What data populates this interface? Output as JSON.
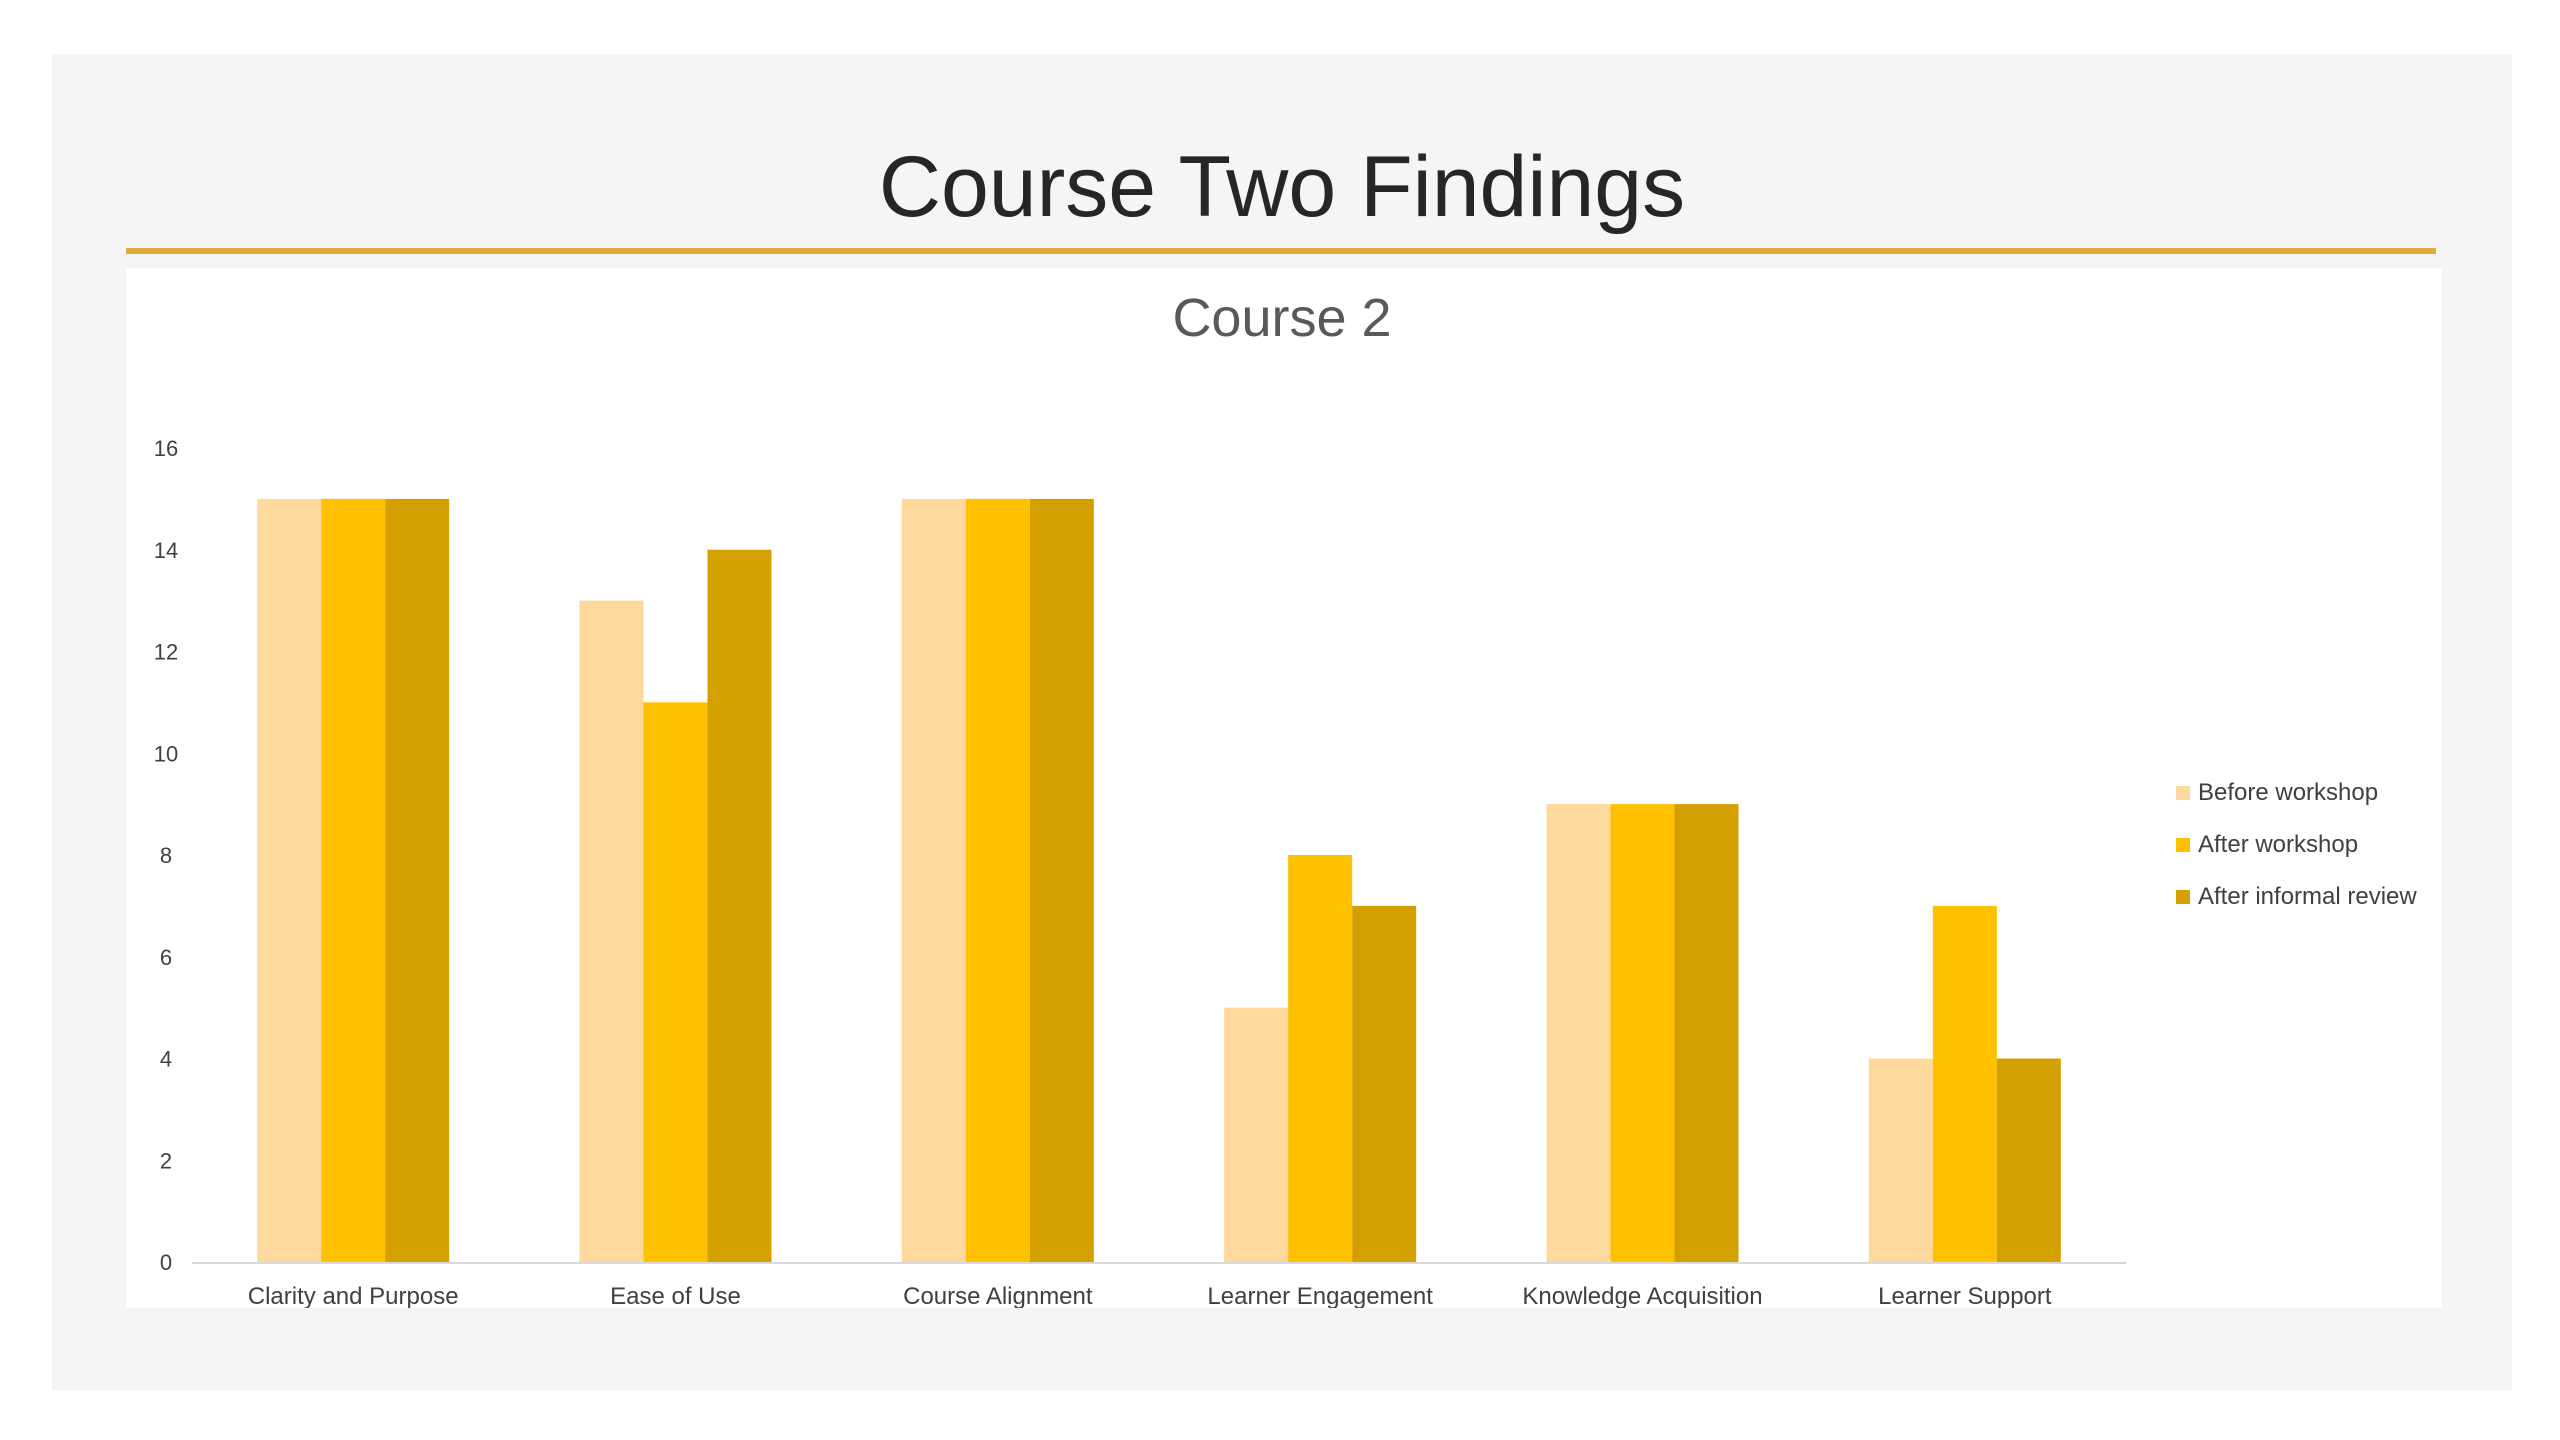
{
  "slide": {
    "title": "Course Two Findings",
    "rule_color": "#e3ab3a"
  },
  "chart_data": {
    "type": "bar",
    "title": "Course 2",
    "xlabel": "",
    "ylabel": "",
    "ylim": [
      0,
      16
    ],
    "yticks": [
      0,
      2,
      4,
      6,
      8,
      10,
      12,
      14,
      16
    ],
    "grid": false,
    "legend_position": "right",
    "categories": [
      "Clarity and Purpose",
      "Ease of Use",
      "Course Alignment",
      "Learner Engagement",
      "Knowledge Acquisition",
      "Learner Support"
    ],
    "series": [
      {
        "name": "Before workshop",
        "color": "#ffd89e",
        "values": [
          15,
          13,
          15,
          5,
          9,
          4
        ]
      },
      {
        "name": "After workshop",
        "color": "#ffc000",
        "values": [
          15,
          11,
          15,
          8,
          9,
          7
        ]
      },
      {
        "name": "After informal review",
        "color": "#d4a000",
        "values": [
          15,
          14,
          15,
          7,
          9,
          4
        ]
      }
    ]
  }
}
